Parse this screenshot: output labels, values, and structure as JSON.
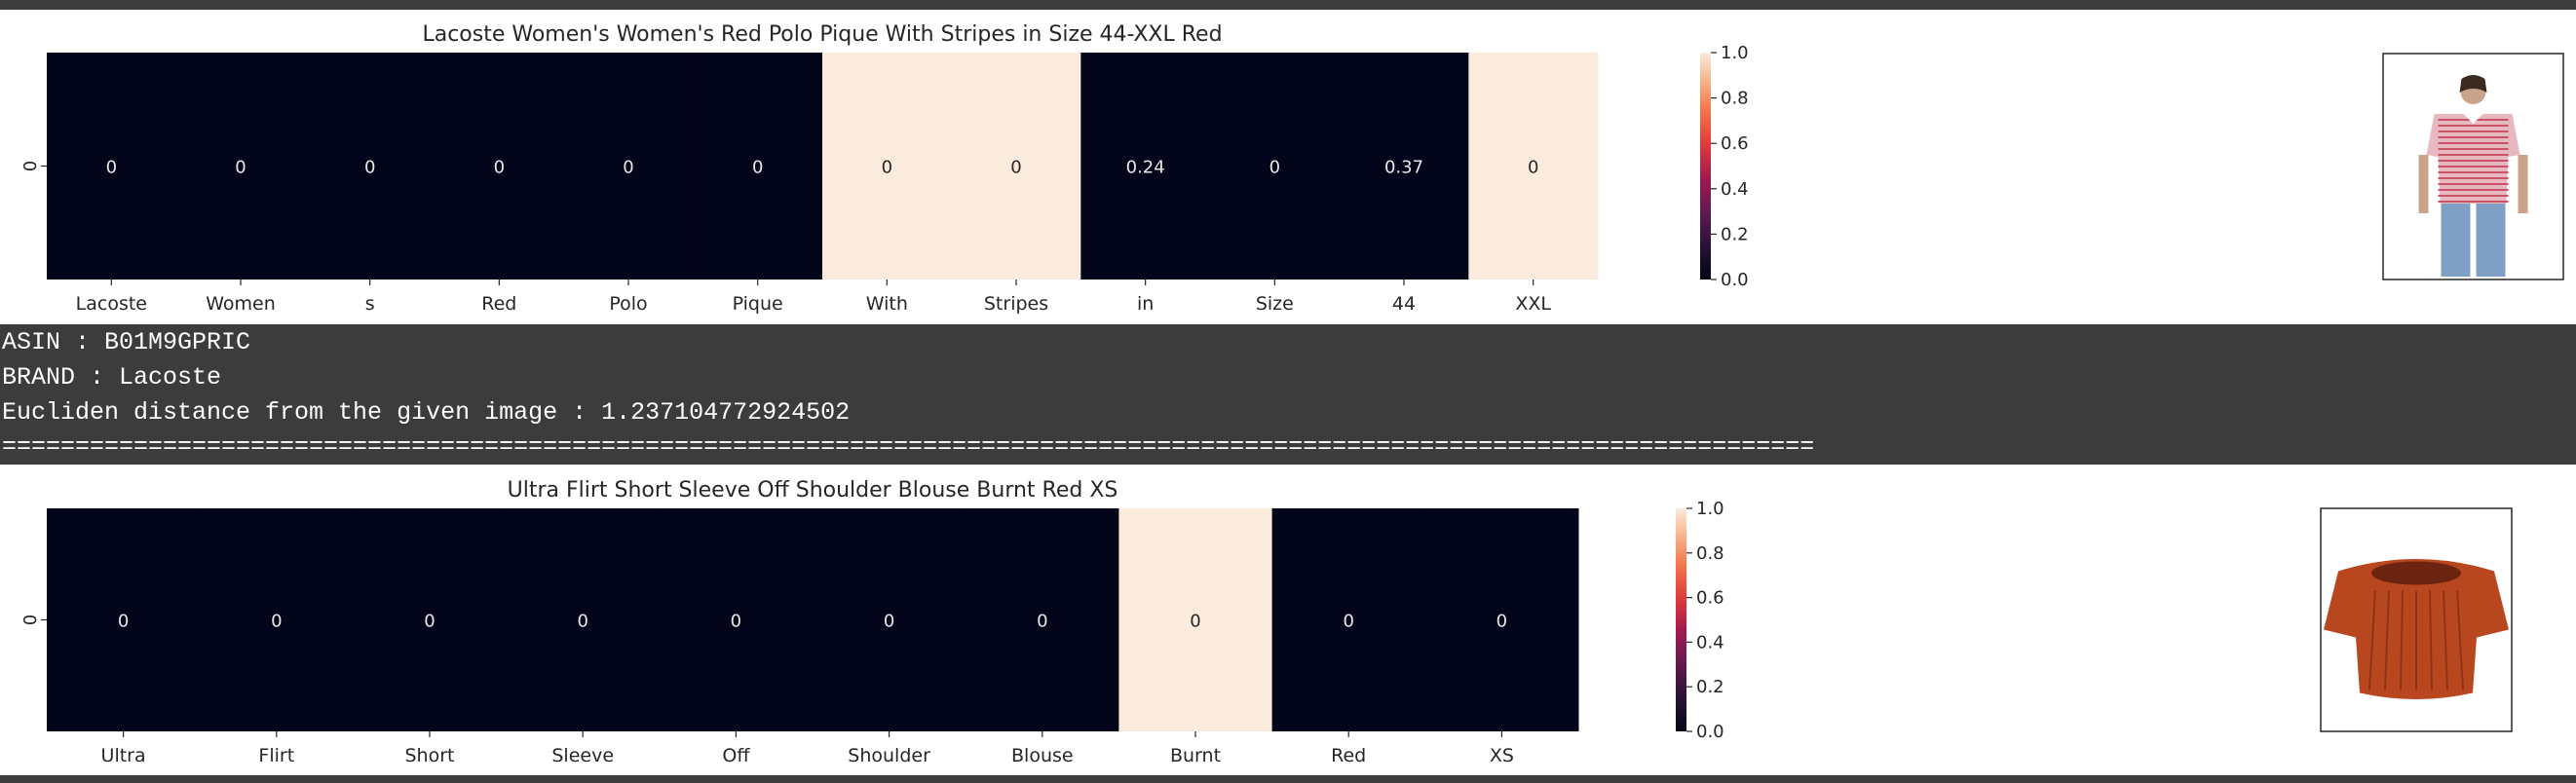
{
  "chart_data": [
    {
      "type": "heatmap",
      "title": "Lacoste Women's Women's Red Polo Pique With Stripes in Size 44-XXL Red",
      "categories": [
        "Lacoste",
        "Women",
        "s",
        "Red",
        "Polo",
        "Pique",
        "With",
        "Stripes",
        "in",
        "Size",
        "44",
        "XXL"
      ],
      "ytick": "0",
      "values": [
        0,
        0,
        0,
        0,
        0,
        0,
        1,
        1,
        0,
        0,
        0,
        1
      ],
      "annotations": [
        "0",
        "0",
        "0",
        "0",
        "0",
        "0",
        "0",
        "0",
        "0.24",
        "0",
        "0.37",
        "0"
      ],
      "colorbar": {
        "range": [
          0.0,
          1.0
        ],
        "ticks": [
          "0.0",
          "0.2",
          "0.4",
          "0.6",
          "0.8",
          "1.0"
        ]
      },
      "image_icon": "striped-polo-shirt-photo"
    },
    {
      "type": "heatmap",
      "title": "Ultra Flirt Short Sleeve Off Shoulder Blouse Burnt Red XS",
      "categories": [
        "Ultra",
        "Flirt",
        "Short",
        "Sleeve",
        "Off",
        "Shoulder",
        "Blouse",
        "Burnt",
        "Red",
        "XS"
      ],
      "ytick": "0",
      "values": [
        0,
        0,
        0,
        0,
        0,
        0,
        0,
        1,
        0,
        0
      ],
      "annotations": [
        "0",
        "0",
        "0",
        "0",
        "0",
        "0",
        "0",
        "0",
        "0",
        "0"
      ],
      "colorbar": {
        "range": [
          0.0,
          1.0
        ],
        "ticks": [
          "0.0",
          "0.2",
          "0.4",
          "0.6",
          "0.8",
          "1.0"
        ]
      },
      "image_icon": "off-shoulder-blouse-photo"
    }
  ],
  "output": {
    "asin": "ASIN : B01M9GPRIC",
    "brand": "BRAND : Lacoste",
    "distance": "Eucliden distance from the given image : 1.237104772924502",
    "separator": "============================================================================================================================"
  },
  "colors": {
    "low": "#03051a",
    "high": "#faebdd",
    "text_on_low": "#e8e8e8",
    "text_on_high": "#262626"
  }
}
